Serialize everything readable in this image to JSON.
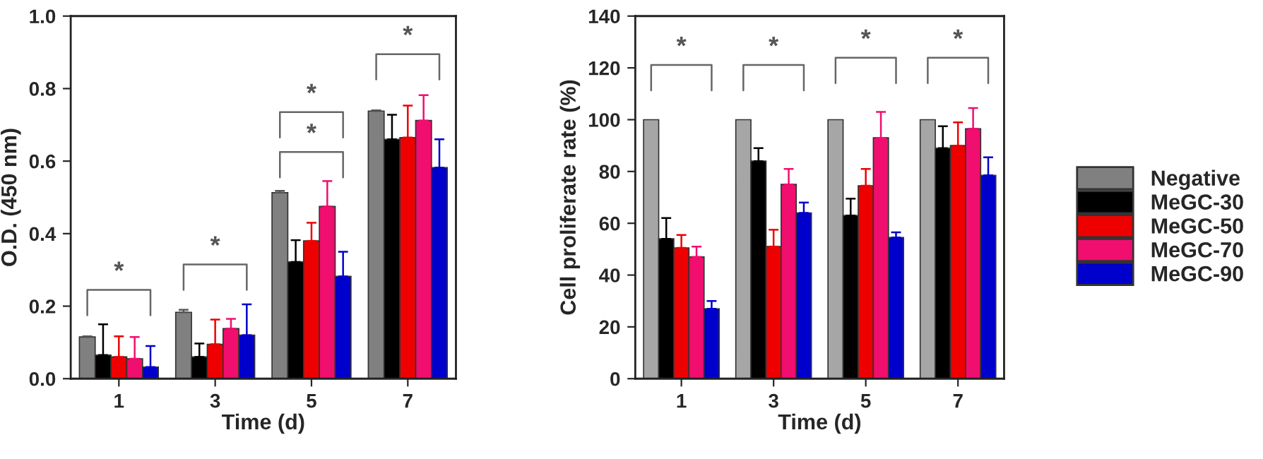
{
  "chart_data": [
    {
      "type": "bar",
      "xlabel": "Time (d)",
      "ylabel": "O.D. (450 nm)",
      "categories": [
        "1",
        "3",
        "5",
        "7"
      ],
      "ylim": [
        0,
        1.0
      ],
      "yticks": [
        {
          "value": 0,
          "label": "0.0"
        },
        0.2,
        0.4,
        0.6,
        0.8,
        {
          "value": 1.0,
          "label": "1.0"
        }
      ],
      "grid": false,
      "legend": "right",
      "series": [
        {
          "name": "Negative",
          "color": "#808080",
          "values": [
            0.115,
            0.183,
            0.513,
            0.738
          ],
          "errors": [
            [
              0.115,
              0.117
            ],
            [
              0.183,
              0.19
            ],
            [
              0.513,
              0.518
            ],
            [
              0.738,
              0.74
            ]
          ]
        },
        {
          "name": "MeGC-30",
          "color": "#000000",
          "values": [
            0.065,
            0.06,
            0.322,
            0.66
          ],
          "errors": [
            [
              0.065,
              0.15
            ],
            [
              0.06,
              0.097
            ],
            [
              0.322,
              0.382
            ],
            [
              0.66,
              0.728
            ]
          ]
        },
        {
          "name": "MeGC-50",
          "color": "#ee0000",
          "values": [
            0.06,
            0.095,
            0.38,
            0.665
          ],
          "errors": [
            [
              0.06,
              0.117
            ],
            [
              0.095,
              0.163
            ],
            [
              0.38,
              0.43
            ],
            [
              0.665,
              0.753
            ]
          ]
        },
        {
          "name": "MeGC-70",
          "color": "#f00e6e",
          "values": [
            0.055,
            0.138,
            0.475,
            0.712
          ],
          "errors": [
            [
              0.055,
              0.115
            ],
            [
              0.138,
              0.165
            ],
            [
              0.475,
              0.545
            ],
            [
              0.712,
              0.782
            ]
          ]
        },
        {
          "name": "MeGC-90",
          "color": "#0000cc",
          "values": [
            0.032,
            0.12,
            0.282,
            0.582
          ],
          "errors": [
            [
              0.032,
              0.09
            ],
            [
              0.12,
              0.205
            ],
            [
              0.282,
              0.35
            ],
            [
              0.582,
              0.66
            ]
          ]
        }
      ],
      "annotations": [
        "*",
        "*",
        "*",
        "*",
        "*"
      ]
    },
    {
      "type": "bar",
      "xlabel": "Time (d)",
      "ylabel": "Cell proliferate rate (%)",
      "categories": [
        "1",
        "3",
        "5",
        "7"
      ],
      "ylim": [
        0,
        140
      ],
      "yticks": [
        0,
        20,
        40,
        60,
        80,
        100,
        120,
        140
      ],
      "grid": false,
      "series": [
        {
          "color": "#a6a6a6",
          "values": [
            100,
            100,
            100,
            100
          ]
        },
        {
          "color": "#000000",
          "values": [
            54,
            84,
            63,
            89
          ],
          "errors": [
            [
              54,
              62
            ],
            [
              84,
              89
            ],
            [
              63,
              69.5
            ],
            [
              89,
              97.5
            ]
          ]
        },
        {
          "color": "#ee0000",
          "values": [
            50.5,
            51,
            74.5,
            90
          ],
          "errors": [
            [
              50.5,
              55.5
            ],
            [
              51,
              57.5
            ],
            [
              74.5,
              81
            ],
            [
              90,
              99
            ]
          ]
        },
        {
          "color": "#f00e6e",
          "values": [
            47,
            75,
            93,
            96.5
          ],
          "errors": [
            [
              47,
              51
            ],
            [
              75,
              81
            ],
            [
              93,
              103
            ],
            [
              96.5,
              104.5
            ]
          ]
        },
        {
          "color": "#0000cc",
          "values": [
            27,
            64,
            54.5,
            78.5
          ],
          "errors": [
            [
              27,
              30
            ],
            [
              64,
              68
            ],
            [
              54.5,
              56.5
            ],
            [
              78.5,
              85.5
            ]
          ]
        }
      ],
      "annotations": [
        "*",
        "*",
        "*",
        "*"
      ]
    }
  ]
}
